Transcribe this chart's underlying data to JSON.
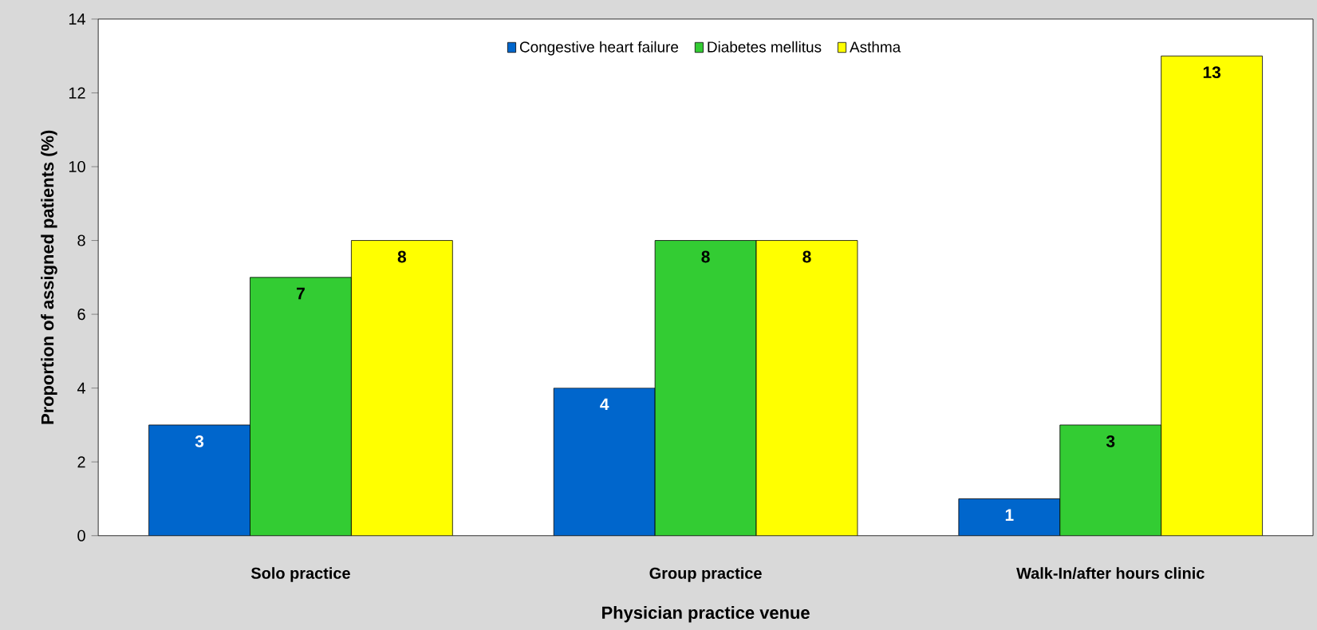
{
  "chart_data": {
    "type": "bar",
    "categories": [
      "Solo practice",
      "Group practice",
      "Walk-In/after hours clinic"
    ],
    "xlabel": "Physician practice venue",
    "ylabel": "Proportion of assigned patients (%)",
    "series": [
      {
        "name": "Congestive heart failure",
        "color": "#0066cc",
        "values": [
          3,
          4,
          1
        ]
      },
      {
        "name": "Diabetes mellitus",
        "color": "#33cc33",
        "values": [
          7,
          8,
          3
        ]
      },
      {
        "name": "Asthma",
        "color": "#ffff00",
        "values": [
          8,
          8,
          13
        ]
      }
    ],
    "ylim": [
      0,
      14
    ],
    "yticks": [
      0,
      2,
      4,
      6,
      8,
      10,
      12,
      14
    ],
    "data_labels": true,
    "legend": "top",
    "grid": false
  }
}
